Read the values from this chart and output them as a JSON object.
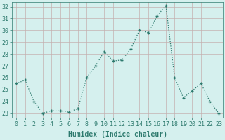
{
  "x": [
    0,
    1,
    2,
    3,
    4,
    5,
    6,
    7,
    8,
    9,
    10,
    11,
    12,
    13,
    14,
    15,
    16,
    17,
    18,
    19,
    20,
    21,
    22,
    23
  ],
  "y": [
    25.5,
    25.8,
    24.0,
    23.0,
    23.2,
    23.2,
    23.1,
    23.4,
    26.0,
    27.0,
    28.2,
    27.4,
    27.5,
    28.4,
    30.0,
    29.8,
    31.2,
    32.1,
    26.0,
    24.3,
    24.9,
    25.5,
    24.0,
    23.0
  ],
  "line_color": "#2d7a6e",
  "marker": "+",
  "bg_color": "#d5f0ee",
  "grid_color": "#c4b0b0",
  "xlabel": "Humidex (Indice chaleur)",
  "ylabel_ticks": [
    23,
    24,
    25,
    26,
    27,
    28,
    29,
    30,
    31,
    32
  ],
  "ylim": [
    22.6,
    32.4
  ],
  "xlim": [
    -0.5,
    23.5
  ],
  "tick_color": "#2d7a6e",
  "label_color": "#2d7a6e",
  "font_size_axis": 6,
  "font_size_xlabel": 7,
  "markersize": 3.5,
  "linewidth": 0.9
}
